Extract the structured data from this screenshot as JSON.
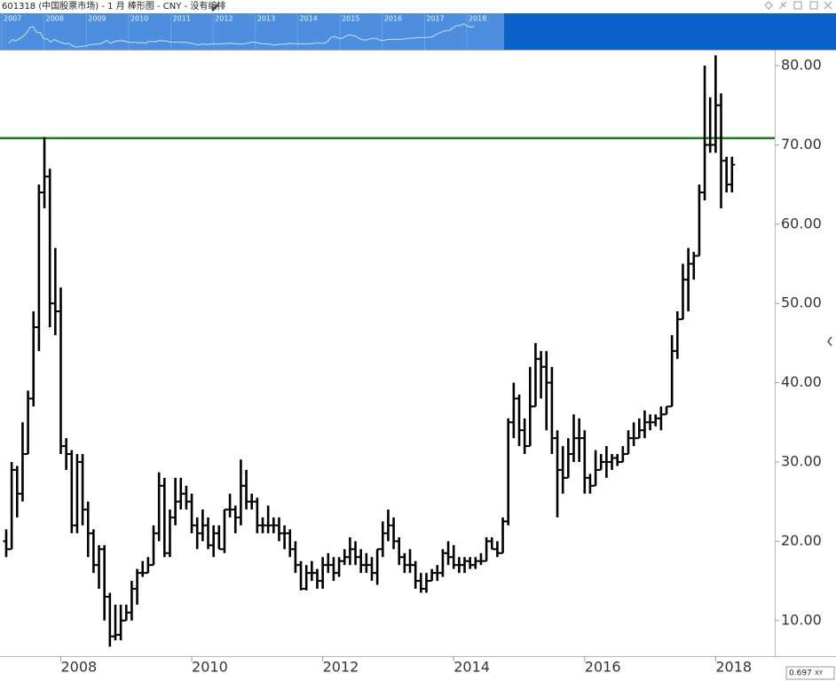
{
  "chart_data": {
    "type": "ohlc",
    "title": "601318 (中国股票市场) - 1 月 棒形图 - CNY - 没有编排",
    "color": "#000000",
    "x": [
      "2007-03",
      "2007-04",
      "2007-05",
      "2007-06",
      "2007-07",
      "2007-08",
      "2007-09",
      "2007-10",
      "2007-11",
      "2007-12",
      "2008-01",
      "2008-02",
      "2008-03",
      "2008-04",
      "2008-05",
      "2008-06",
      "2008-07",
      "2008-08",
      "2008-09",
      "2008-10",
      "2008-11",
      "2008-12",
      "2009-01",
      "2009-02",
      "2009-03",
      "2009-04",
      "2009-05",
      "2009-06",
      "2009-07",
      "2009-08",
      "2009-09",
      "2009-10",
      "2009-11",
      "2009-12",
      "2010-01",
      "2010-02",
      "2010-03",
      "2010-04",
      "2010-05",
      "2010-06",
      "2010-07",
      "2010-08",
      "2010-09",
      "2010-10",
      "2010-11",
      "2010-12",
      "2011-01",
      "2011-02",
      "2011-03",
      "2011-04",
      "2011-05",
      "2011-06",
      "2011-07",
      "2011-08",
      "2011-09",
      "2011-10",
      "2011-11",
      "2011-12",
      "2012-01",
      "2012-02",
      "2012-03",
      "2012-04",
      "2012-05",
      "2012-06",
      "2012-07",
      "2012-08",
      "2012-09",
      "2012-10",
      "2012-11",
      "2012-12",
      "2013-01",
      "2013-02",
      "2013-03",
      "2013-04",
      "2013-05",
      "2013-06",
      "2013-07",
      "2013-08",
      "2013-09",
      "2013-10",
      "2013-11",
      "2013-12",
      "2014-01",
      "2014-02",
      "2014-03",
      "2014-04",
      "2014-05",
      "2014-06",
      "2014-07",
      "2014-08",
      "2014-09",
      "2014-10",
      "2014-11",
      "2014-12",
      "2015-01",
      "2015-02",
      "2015-03",
      "2015-04",
      "2015-05",
      "2015-06",
      "2015-07",
      "2015-08",
      "2015-09",
      "2015-10",
      "2015-11",
      "2015-12",
      "2016-01",
      "2016-02",
      "2016-03",
      "2016-04",
      "2016-05",
      "2016-06",
      "2016-07",
      "2016-08",
      "2016-09",
      "2016-10",
      "2016-11",
      "2016-12",
      "2017-01",
      "2017-02",
      "2017-03",
      "2017-04",
      "2017-05",
      "2017-06",
      "2017-07",
      "2017-08",
      "2017-09",
      "2017-10",
      "2017-11",
      "2017-12",
      "2018-01",
      "2018-02",
      "2018-03",
      "2018-04"
    ],
    "open": [
      20,
      19,
      29,
      26,
      31,
      38,
      47,
      64,
      66,
      50,
      49,
      32,
      31,
      22,
      30,
      24,
      21,
      17,
      19,
      13,
      8,
      8.2,
      10,
      11,
      14,
      16,
      16,
      17,
      21,
      27,
      18.5,
      23,
      25,
      26,
      25,
      22,
      21,
      22,
      19.5,
      21,
      19,
      24,
      24,
      23,
      27,
      25,
      25,
      22,
      22,
      22,
      22,
      21,
      21,
      19,
      17,
      14,
      16,
      16,
      15,
      17,
      17,
      16,
      17.5,
      18,
      19,
      18,
      17,
      17,
      16,
      19,
      21,
      22,
      20,
      18,
      17,
      17,
      15,
      14,
      15,
      16,
      16,
      18.5,
      18,
      17,
      17,
      17.5,
      17,
      17.5,
      17.5,
      20,
      19,
      18.5,
      22.5,
      35,
      38,
      34,
      32,
      37,
      43,
      42,
      40,
      33,
      29,
      28,
      31,
      33,
      33,
      28,
      27,
      29,
      30,
      30,
      30.5,
      30,
      31,
      33,
      33,
      34,
      35,
      35,
      35.5,
      36,
      37,
      44,
      48,
      53,
      55,
      56,
      64,
      70,
      70,
      75,
      68,
      65
    ],
    "high": [
      21.5,
      30,
      29.5,
      35,
      39,
      49,
      65,
      71,
      67,
      57,
      52,
      33,
      31.5,
      31,
      31,
      25,
      21.5,
      19.5,
      19.5,
      13.5,
      12,
      12,
      12,
      15,
      16.5,
      17.5,
      18,
      22,
      28.7,
      28,
      24,
      28,
      28,
      27,
      26,
      23,
      24,
      23,
      22,
      22,
      24,
      26,
      24.5,
      30.3,
      29,
      26,
      25.5,
      23,
      24.5,
      23,
      23,
      22,
      21.5,
      20,
      17.5,
      17,
      17.5,
      16.5,
      18,
      18.5,
      18,
      18,
      19,
      20.5,
      20,
      19,
      18.5,
      18,
      19,
      22.5,
      24,
      23,
      20.5,
      18.5,
      19,
      17.5,
      16,
      16,
      16.5,
      17,
      19,
      20,
      19.5,
      18,
      18,
      18,
      18,
      18.5,
      20.5,
      20.5,
      20,
      23,
      35.5,
      40,
      38.5,
      35.5,
      42,
      45,
      44,
      44,
      42,
      34,
      32,
      33,
      36,
      35.5,
      34,
      28.5,
      31.5,
      31,
      32,
      31,
      31,
      32,
      34,
      35,
      35.5,
      36.5,
      36,
      36,
      37,
      37,
      46,
      49,
      55,
      57,
      56.5,
      65,
      80,
      76,
      81.3,
      76.5,
      68.5,
      68.5
    ],
    "low": [
      18,
      19,
      23,
      25,
      31,
      37,
      44,
      62,
      47,
      46,
      31,
      29,
      21,
      21,
      22,
      18,
      16,
      14,
      10,
      6.7,
      7.5,
      7.5,
      10,
      10,
      12,
      15.5,
      16,
      17,
      20,
      18,
      18,
      22,
      24,
      24,
      21,
      19,
      20,
      19,
      18,
      19,
      18.5,
      23,
      21,
      22,
      24,
      24,
      21,
      21,
      21,
      21,
      20,
      19,
      18,
      16,
      13.8,
      13.8,
      15,
      14,
      14,
      16,
      15,
      15.5,
      17,
      17,
      17,
      16,
      16,
      15,
      14.5,
      18,
      20,
      19,
      17,
      16,
      16,
      14,
      13.5,
      13.5,
      15,
      15,
      15.5,
      17,
      16.5,
      16,
      16,
      16.5,
      16.5,
      17,
      17.5,
      19,
      18,
      18.5,
      22,
      33,
      32,
      31,
      32,
      37,
      38,
      34,
      31,
      23,
      26,
      28,
      30,
      30,
      26,
      26,
      27,
      29,
      28,
      29,
      29.5,
      30,
      31,
      32,
      33,
      33,
      34,
      34.5,
      34,
      36,
      37,
      43,
      48,
      49,
      53,
      56,
      63,
      69,
      69,
      62,
      64,
      64
    ],
    "close": [
      19,
      29,
      26,
      31,
      38,
      47,
      64,
      66,
      50,
      49,
      32,
      31,
      22,
      30,
      24,
      21,
      17,
      19,
      13,
      8,
      8.2,
      10,
      11,
      14,
      16,
      16,
      17,
      21,
      27,
      18.5,
      23,
      25,
      26,
      25,
      22,
      21,
      22,
      19.5,
      21,
      19,
      24,
      24,
      23,
      27,
      25,
      25,
      22,
      22,
      22,
      22,
      21,
      21,
      19,
      17,
      14,
      16,
      16,
      15,
      17,
      17,
      16,
      17.5,
      18,
      19,
      18,
      17,
      17,
      16,
      19,
      21,
      22,
      20,
      18,
      17,
      17,
      15,
      14,
      15,
      16,
      16,
      18.5,
      18,
      17,
      17,
      17.5,
      17,
      17.5,
      17.5,
      20,
      19,
      18.5,
      22.5,
      35,
      38,
      34,
      32,
      37,
      43,
      42,
      40,
      33,
      29,
      28,
      31,
      33,
      33,
      28,
      27,
      29,
      30,
      30,
      30.5,
      30,
      31,
      33,
      33,
      34,
      35,
      35,
      35.5,
      36,
      37,
      44,
      48,
      53,
      55,
      56,
      64,
      70,
      70,
      75,
      68,
      65,
      67.5
    ],
    "xlim": [
      "2007-01",
      "2018-12"
    ],
    "xticks": [
      {
        "value": "2008-01",
        "label": "2008"
      },
      {
        "value": "2010-01",
        "label": "2010"
      },
      {
        "value": "2012-01",
        "label": "2012"
      },
      {
        "value": "2014-01",
        "label": "2014"
      },
      {
        "value": "2016-01",
        "label": "2016"
      },
      {
        "value": "2018-01",
        "label": "2018"
      }
    ],
    "ylim": [
      5.5,
      81.9
    ],
    "yticks": [
      {
        "value": 10,
        "label": "10.00"
      },
      {
        "value": 20,
        "label": "20.00"
      },
      {
        "value": 30,
        "label": "30.00"
      },
      {
        "value": 40,
        "label": "40.00"
      },
      {
        "value": 50,
        "label": "50.00"
      },
      {
        "value": 60,
        "label": "60.00"
      },
      {
        "value": 70,
        "label": "70.00"
      },
      {
        "value": 80,
        "label": "80.00"
      }
    ],
    "reference_line": {
      "value": 70.85,
      "color": "#1e7b1e"
    },
    "navigator": {
      "labels": [
        "2007",
        "2008",
        "2009",
        "2010",
        "2011",
        "2012",
        "2013",
        "2014",
        "2015",
        "2016",
        "2017",
        "2018"
      ]
    },
    "status": {
      "value": "0.697",
      "mode": "XY"
    }
  }
}
